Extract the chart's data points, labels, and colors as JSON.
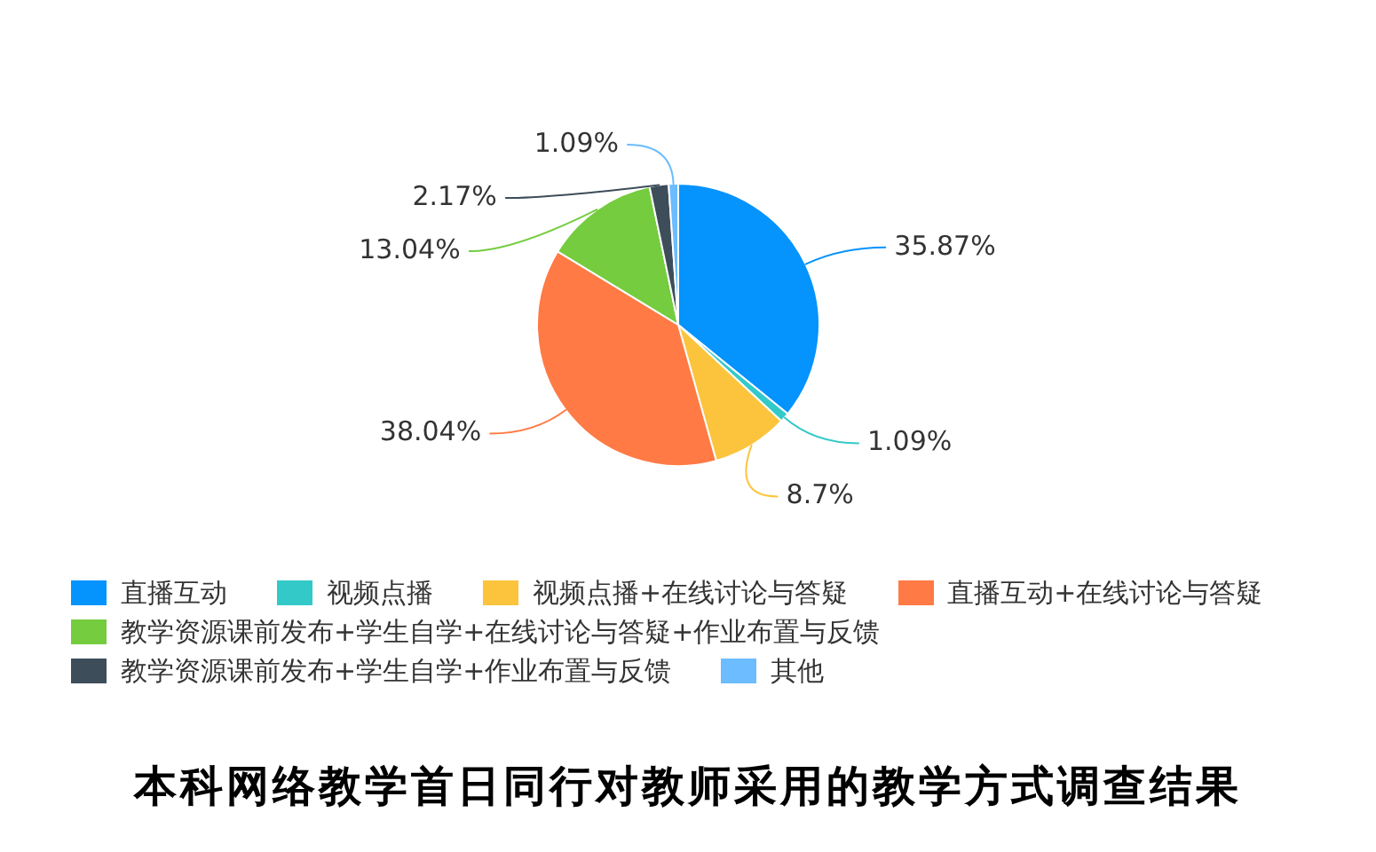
{
  "chart_data": {
    "type": "pie",
    "title": "本科网络教学首日同行对教师采用的教学方式调查结果",
    "categories": [
      "直播互动",
      "视频点播",
      "视频点播+在线讨论与答疑",
      "直播互动+在线讨论与答疑",
      "教学资源课前发布+学生自学+在线讨论与答疑+作业布置与反馈",
      "教学资源课前发布+学生自学+作业布置与反馈",
      "其他"
    ],
    "values": [
      35.87,
      1.09,
      8.7,
      38.04,
      13.04,
      2.17,
      1.09
    ],
    "value_labels": [
      "35.87%",
      "1.09%",
      "8.7%",
      "38.04%",
      "13.04%",
      "2.17%",
      "1.09%"
    ],
    "colors": [
      "#0593fd",
      "#34c9c9",
      "#fcc43d",
      "#ff7a45",
      "#74cc3e",
      "#3d4d5a",
      "#6cbcff"
    ],
    "legend": "bottom"
  }
}
